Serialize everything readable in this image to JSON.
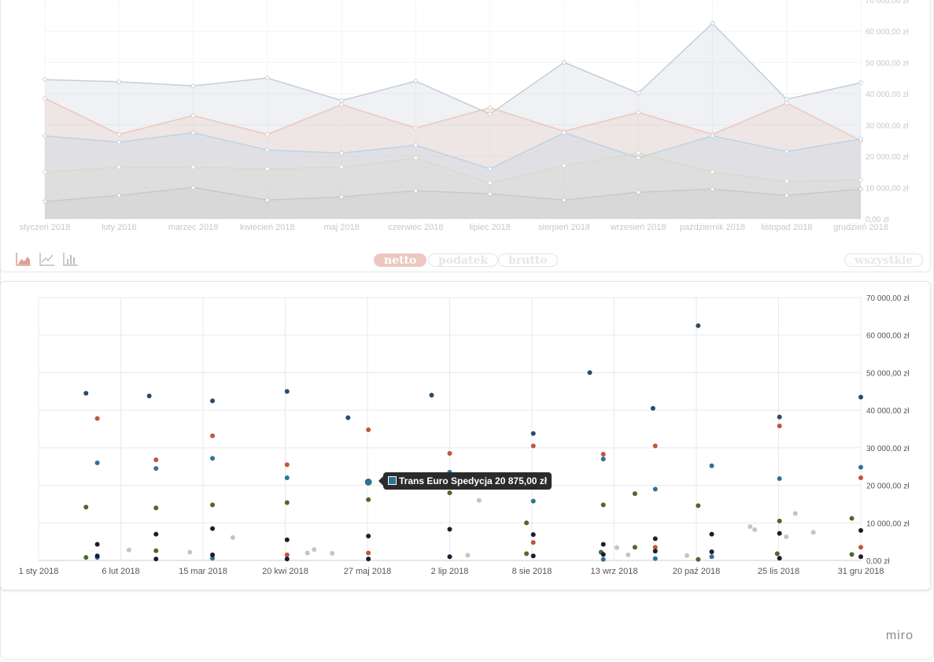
{
  "chart_data": [
    {
      "type": "area",
      "categories": [
        "styczeń 2018",
        "luty 2018",
        "marzec 2018",
        "kwiecień 2018",
        "maj 2018",
        "czerwiec 2018",
        "lipiec 2018",
        "sierpień 2018",
        "wrzesień 2018",
        "październik 2018",
        "listopad 2018",
        "grudzień 2018"
      ],
      "y_ticks": [
        "0,00 zł",
        "10 000,00 zł",
        "20 000,00 zł",
        "30 000,00 zł",
        "40 000,00 zł",
        "50 000,00 zł",
        "60 000,00 zł",
        "70 000,00 zł"
      ],
      "ylim": [
        0,
        70000
      ],
      "grid": true,
      "series": [
        {
          "color": "#c5ced7",
          "values": [
            44500,
            43800,
            42500,
            45000,
            37800,
            44000,
            33500,
            50000,
            40200,
            62500,
            38200,
            43500
          ]
        },
        {
          "color": "#ecc7bd",
          "values": [
            38500,
            27000,
            33000,
            27000,
            36500,
            29000,
            35500,
            28000,
            34000,
            27000,
            37000,
            25000
          ]
        },
        {
          "color": "#bfd3e1",
          "values": [
            26500,
            24500,
            27500,
            22000,
            21000,
            23500,
            16000,
            27500,
            19500,
            26500,
            21500,
            25500
          ]
        },
        {
          "color": "#d6dccc",
          "values": [
            15000,
            16500,
            16500,
            16000,
            16500,
            19500,
            11500,
            17000,
            21000,
            15000,
            12000,
            12500
          ]
        },
        {
          "color": "#c9c9c9",
          "values": [
            5500,
            7500,
            10000,
            6000,
            7000,
            9000,
            8000,
            6000,
            8500,
            9500,
            7500,
            9500
          ]
        }
      ]
    },
    {
      "type": "scatter",
      "x_ticks": [
        "1 sty 2018",
        "6 lut 2018",
        "15 mar 2018",
        "20 kwi 2018",
        "27 maj 2018",
        "2 lip 2018",
        "8 sie 2018",
        "13 wrz 2018",
        "20 paź 2018",
        "25 lis 2018",
        "31 gru 2018"
      ],
      "y_ticks": [
        "0,00 zł",
        "10 000,00 zł",
        "20 000,00 zł",
        "30 000,00 zł",
        "40 000,00 zł",
        "50 000,00 zł",
        "60 000,00 zł",
        "70 000,00 zł"
      ],
      "xlim": [
        "2018-01-01",
        "2018-12-31"
      ],
      "ylim": [
        0,
        70000
      ],
      "grid": true,
      "series": [
        {
          "color": "#2a4b6b",
          "points": [
            [
              "2018-01-22",
              44500
            ],
            [
              "2018-02-19",
              43800
            ],
            [
              "2018-03-19",
              42500
            ],
            [
              "2018-04-21",
              45000
            ],
            [
              "2018-05-18",
              38000
            ],
            [
              "2018-06-24",
              44000
            ],
            [
              "2018-08-08",
              33800
            ],
            [
              "2018-09-02",
              50000
            ],
            [
              "2018-09-30",
              40500
            ],
            [
              "2018-10-20",
              62500
            ],
            [
              "2018-11-25",
              38200
            ],
            [
              "2018-12-31",
              43500
            ]
          ]
        },
        {
          "color": "#c0563a",
          "points": [
            [
              "2018-01-27",
              37800
            ],
            [
              "2018-02-22",
              26800
            ],
            [
              "2018-03-19",
              33200
            ],
            [
              "2018-04-21",
              25500
            ],
            [
              "2018-05-27",
              34800
            ],
            [
              "2018-07-02",
              28500
            ],
            [
              "2018-08-08",
              30500
            ],
            [
              "2018-09-08",
              28300
            ],
            [
              "2018-10-01",
              30500
            ],
            [
              "2018-11-25",
              35800
            ],
            [
              "2018-12-31",
              22000
            ],
            [
              "2018-05-27",
              2000
            ],
            [
              "2018-04-21",
              1500
            ],
            [
              "2018-08-08",
              4800
            ],
            [
              "2018-10-01",
              3500
            ],
            [
              "2018-12-31",
              3500
            ]
          ]
        },
        {
          "color": "#2e7396",
          "points": [
            [
              "2018-01-27",
              26000
            ],
            [
              "2018-02-22",
              24500
            ],
            [
              "2018-03-19",
              27200
            ],
            [
              "2018-04-21",
              22000
            ],
            [
              "2018-05-27",
              20875
            ],
            [
              "2018-07-02",
              23500
            ],
            [
              "2018-08-08",
              15800
            ],
            [
              "2018-09-08",
              27000
            ],
            [
              "2018-10-01",
              19000
            ],
            [
              "2018-10-26",
              25200
            ],
            [
              "2018-11-25",
              21800
            ],
            [
              "2018-12-31",
              24800
            ],
            [
              "2018-01-27",
              800
            ],
            [
              "2018-03-19",
              600
            ],
            [
              "2018-09-08",
              300
            ],
            [
              "2018-10-01",
              500
            ],
            [
              "2018-10-26",
              1000
            ]
          ]
        },
        {
          "color": "#4a6b2a",
          "points": [
            [
              "2018-01-22",
              14200
            ],
            [
              "2018-02-22",
              14000
            ],
            [
              "2018-03-19",
              14800
            ],
            [
              "2018-04-21",
              15400
            ],
            [
              "2018-05-27",
              16200
            ],
            [
              "2018-07-02",
              18000
            ],
            [
              "2018-08-05",
              10000
            ],
            [
              "2018-09-08",
              14800
            ],
            [
              "2018-09-22",
              17800
            ],
            [
              "2018-10-20",
              14600
            ],
            [
              "2018-11-25",
              10500
            ],
            [
              "2018-12-27",
              11200
            ],
            [
              "2018-01-22",
              800
            ],
            [
              "2018-02-22",
              2600
            ],
            [
              "2018-08-05",
              1800
            ],
            [
              "2018-09-07",
              2200
            ],
            [
              "2018-09-22",
              3500
            ],
            [
              "2018-10-20",
              300
            ],
            [
              "2018-11-24",
              1800
            ],
            [
              "2018-12-27",
              1600
            ]
          ]
        },
        {
          "color": "#1f1b33",
          "points": [
            [
              "2018-01-27",
              4300
            ],
            [
              "2018-02-22",
              7000
            ],
            [
              "2018-03-19",
              8500
            ],
            [
              "2018-04-21",
              5500
            ],
            [
              "2018-05-27",
              6500
            ],
            [
              "2018-07-02",
              8300
            ],
            [
              "2018-08-08",
              6900
            ],
            [
              "2018-09-08",
              4300
            ],
            [
              "2018-10-01",
              5800
            ],
            [
              "2018-10-26",
              7000
            ],
            [
              "2018-11-25",
              7200
            ],
            [
              "2018-12-31",
              8000
            ],
            [
              "2018-01-27",
              1200
            ],
            [
              "2018-02-22",
              400
            ],
            [
              "2018-03-19",
              1500
            ],
            [
              "2018-04-21",
              400
            ],
            [
              "2018-05-27",
              400
            ],
            [
              "2018-07-02",
              1000
            ],
            [
              "2018-08-08",
              1200
            ],
            [
              "2018-09-08",
              1600
            ],
            [
              "2018-10-01",
              2500
            ],
            [
              "2018-10-26",
              2300
            ],
            [
              "2018-11-25",
              600
            ],
            [
              "2018-12-31",
              1000
            ]
          ]
        },
        {
          "color": "#c4c4c4",
          "points": [
            [
              "2018-02-10",
              2800
            ],
            [
              "2018-03-09",
              2200
            ],
            [
              "2018-03-28",
              6100
            ],
            [
              "2018-04-30",
              2000
            ],
            [
              "2018-05-03",
              2900
            ],
            [
              "2018-05-11",
              1900
            ],
            [
              "2018-07-10",
              1400
            ],
            [
              "2018-07-15",
              16000
            ],
            [
              "2018-09-14",
              3400
            ],
            [
              "2018-09-19",
              1500
            ],
            [
              "2018-10-15",
              1300
            ],
            [
              "2018-11-12",
              9000
            ],
            [
              "2018-11-14",
              8200
            ],
            [
              "2018-11-28",
              6300
            ],
            [
              "2018-12-02",
              12500
            ],
            [
              "2018-12-10",
              7500
            ]
          ]
        }
      ]
    }
  ],
  "tooltip": {
    "text": "Trans Euro Spedycja 20 875,00 zł",
    "color": "#2e7396"
  },
  "controls": {
    "view_icons": [
      "area-chart-icon",
      "line-chart-icon",
      "bar-chart-icon"
    ],
    "pills": [
      "netto",
      "podatek",
      "brutto"
    ],
    "active_pill": "netto",
    "all_label": "wszystkie"
  },
  "watermark": "miro"
}
